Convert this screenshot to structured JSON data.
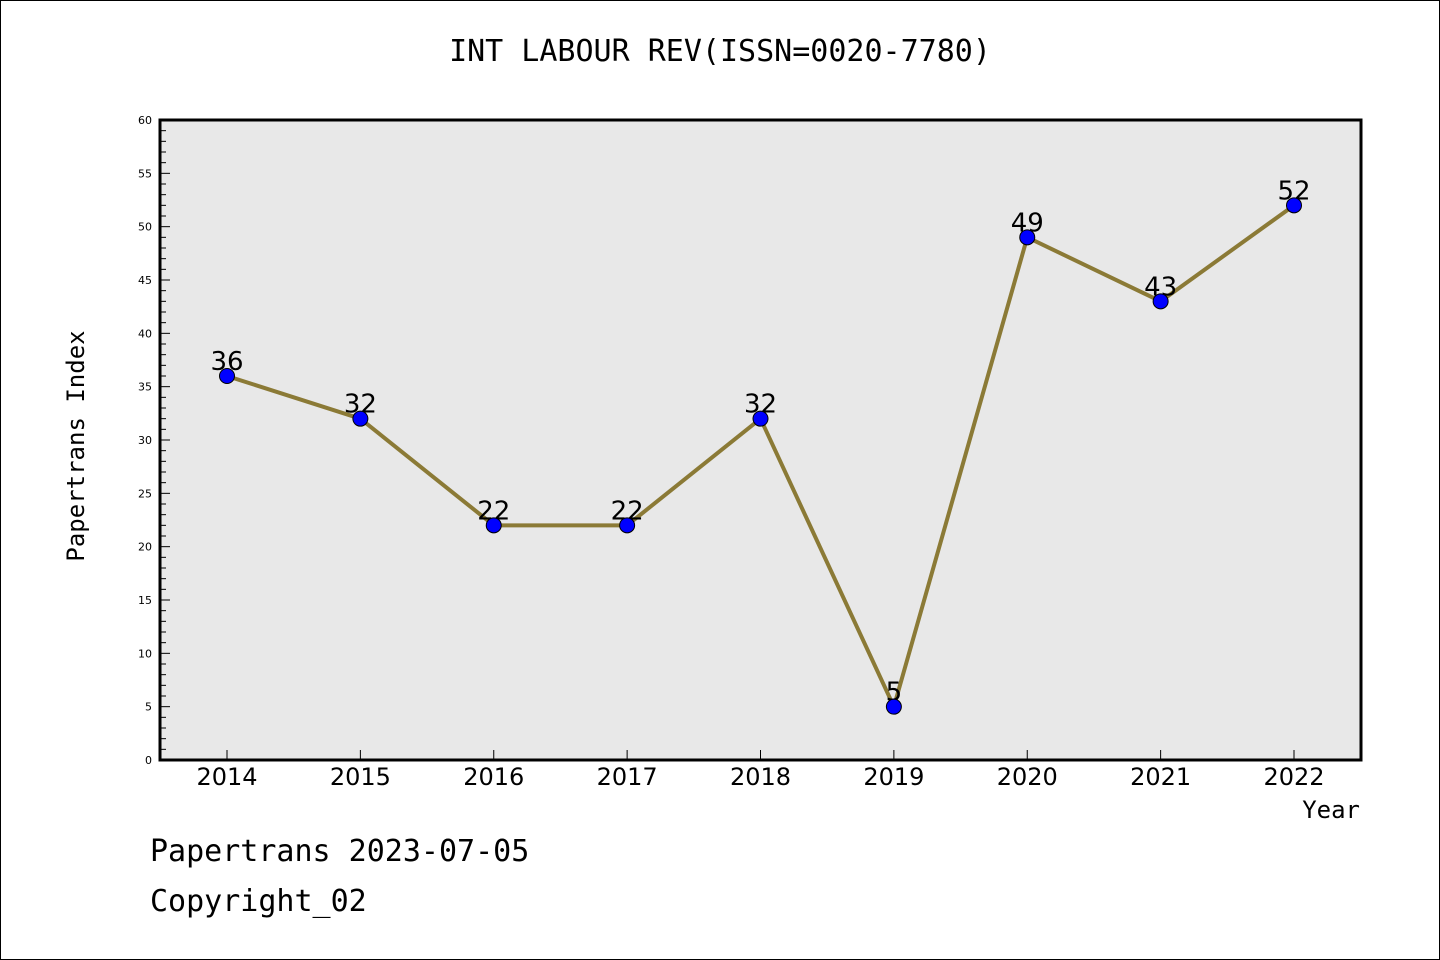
{
  "chart_data": {
    "type": "line",
    "title": "INT LABOUR REV(ISSN=0020-7780)",
    "xlabel": "Year",
    "ylabel": "Papertrans Index",
    "categories": [
      "2014",
      "2015",
      "2016",
      "2017",
      "2018",
      "2019",
      "2020",
      "2021",
      "2022"
    ],
    "series": [
      {
        "values": [
          36,
          32,
          22,
          22,
          32,
          5,
          49,
          43,
          52
        ]
      }
    ],
    "ylim": [
      0,
      60
    ],
    "y_ticks": [
      0,
      5,
      10,
      15,
      20,
      25,
      30,
      35,
      40,
      45,
      50,
      55,
      60
    ],
    "grid": false,
    "colors": {
      "line": "#8b7a36",
      "marker": "#0000ff",
      "plot_background": "#e8e8e8"
    }
  },
  "footer": {
    "line1": "Papertrans 2023-07-05",
    "line2": "Copyright_02"
  }
}
